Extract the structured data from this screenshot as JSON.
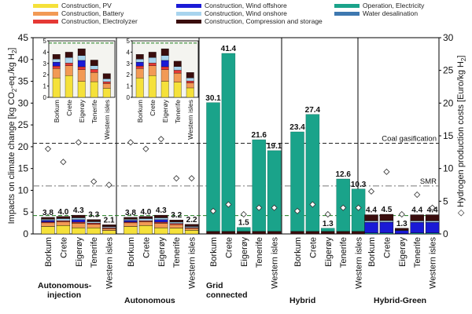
{
  "chart_data": {
    "type": "bar",
    "ylabel_left": "Impacts on climate change [kg CO",
    "ylabel_left_parts": [
      "Impacts on climate change [kg CO",
      "2",
      "-eq./kg H",
      "2",
      "]"
    ],
    "ylabel_right_parts": [
      "◇ Hydrogen production costs [Euro/kg H",
      "2",
      "]"
    ],
    "y_left_range": [
      0,
      45
    ],
    "y_left_ticks": [
      "0",
      "5",
      "10",
      "15",
      "20",
      "25",
      "30",
      "35",
      "40",
      "45"
    ],
    "y_right_range": [
      0,
      30
    ],
    "y_right_ticks": [
      "0",
      "5",
      "10",
      "15",
      "20",
      "25",
      "30"
    ],
    "categories": [
      "Borkum",
      "Crete",
      "Eigerøy",
      "Tenerife",
      "Western isles"
    ],
    "groups": [
      {
        "label_lines": [
          "Autonomous-",
          "injection"
        ],
        "totals": [
          3.8,
          4.0,
          4.3,
          3.3,
          2.1
        ],
        "total_labels": [
          "3.8",
          "4.0",
          "4.3",
          "3.3",
          "2.1"
        ],
        "costs": [
          13.0,
          11.0,
          14.0,
          8.0,
          7.5
        ]
      },
      {
        "label_lines": [
          "Autonomous"
        ],
        "totals": [
          3.8,
          4.0,
          4.3,
          3.2,
          2.2
        ],
        "total_labels": [
          "3.8",
          "4.0",
          "4.3",
          "3.2",
          "2.2"
        ],
        "costs": [
          14.0,
          13.0,
          14.5,
          8.5,
          8.5
        ]
      },
      {
        "label_lines": [
          "Grid",
          "connected"
        ],
        "totals": [
          30.1,
          41.4,
          1.5,
          21.6,
          19.1
        ],
        "total_labels": [
          "30.1",
          "41.4",
          "1.5",
          "21.6",
          "19.1"
        ],
        "costs": [
          3.5,
          4.5,
          3.0,
          4.0,
          4.0
        ]
      },
      {
        "label_lines": [
          "Hybrid"
        ],
        "totals": [
          23.4,
          27.4,
          1.3,
          12.6,
          10.3
        ],
        "total_labels": [
          "23.4",
          "27.4",
          "1.3",
          "12.6",
          "10.3"
        ],
        "costs": [
          3.5,
          4.5,
          3.0,
          4.0,
          4.0
        ]
      },
      {
        "label_lines": [
          "Hybrid-Green"
        ],
        "totals": [
          4.4,
          4.5,
          1.3,
          4.4,
          4.4
        ],
        "total_labels": [
          "4.4",
          "4.5",
          "1.3",
          "4.4",
          "4.4"
        ],
        "costs": [
          6.5,
          9.5,
          3.0,
          6.0,
          4.0
        ]
      }
    ],
    "series": [
      {
        "name": "Construction, PV",
        "color": "#f5e13a"
      },
      {
        "name": "Construction, Battery",
        "color": "#f29a55"
      },
      {
        "name": "Construction, Electrolyzer",
        "color": "#e53935"
      },
      {
        "name": "Construction, Wind offshore",
        "color": "#1a1ad6"
      },
      {
        "name": "Construction, Wind onshore",
        "color": "#a8d4ee"
      },
      {
        "name": "Construction, Compression and storage",
        "color": "#3a0d0d"
      },
      {
        "name": "Operation, Electricity",
        "color": "#1aa38a"
      },
      {
        "name": "Water desalination",
        "color": "#3e78b0"
      }
    ],
    "reference_lines": [
      {
        "label": "Coal gasification",
        "value": 20.8
      },
      {
        "label": "SMR",
        "value": 11.0
      }
    ],
    "inset_y_ticks": [
      "0",
      "1",
      "2",
      "3",
      "4",
      "5"
    ],
    "inset_dashed_value": 4.8
  }
}
